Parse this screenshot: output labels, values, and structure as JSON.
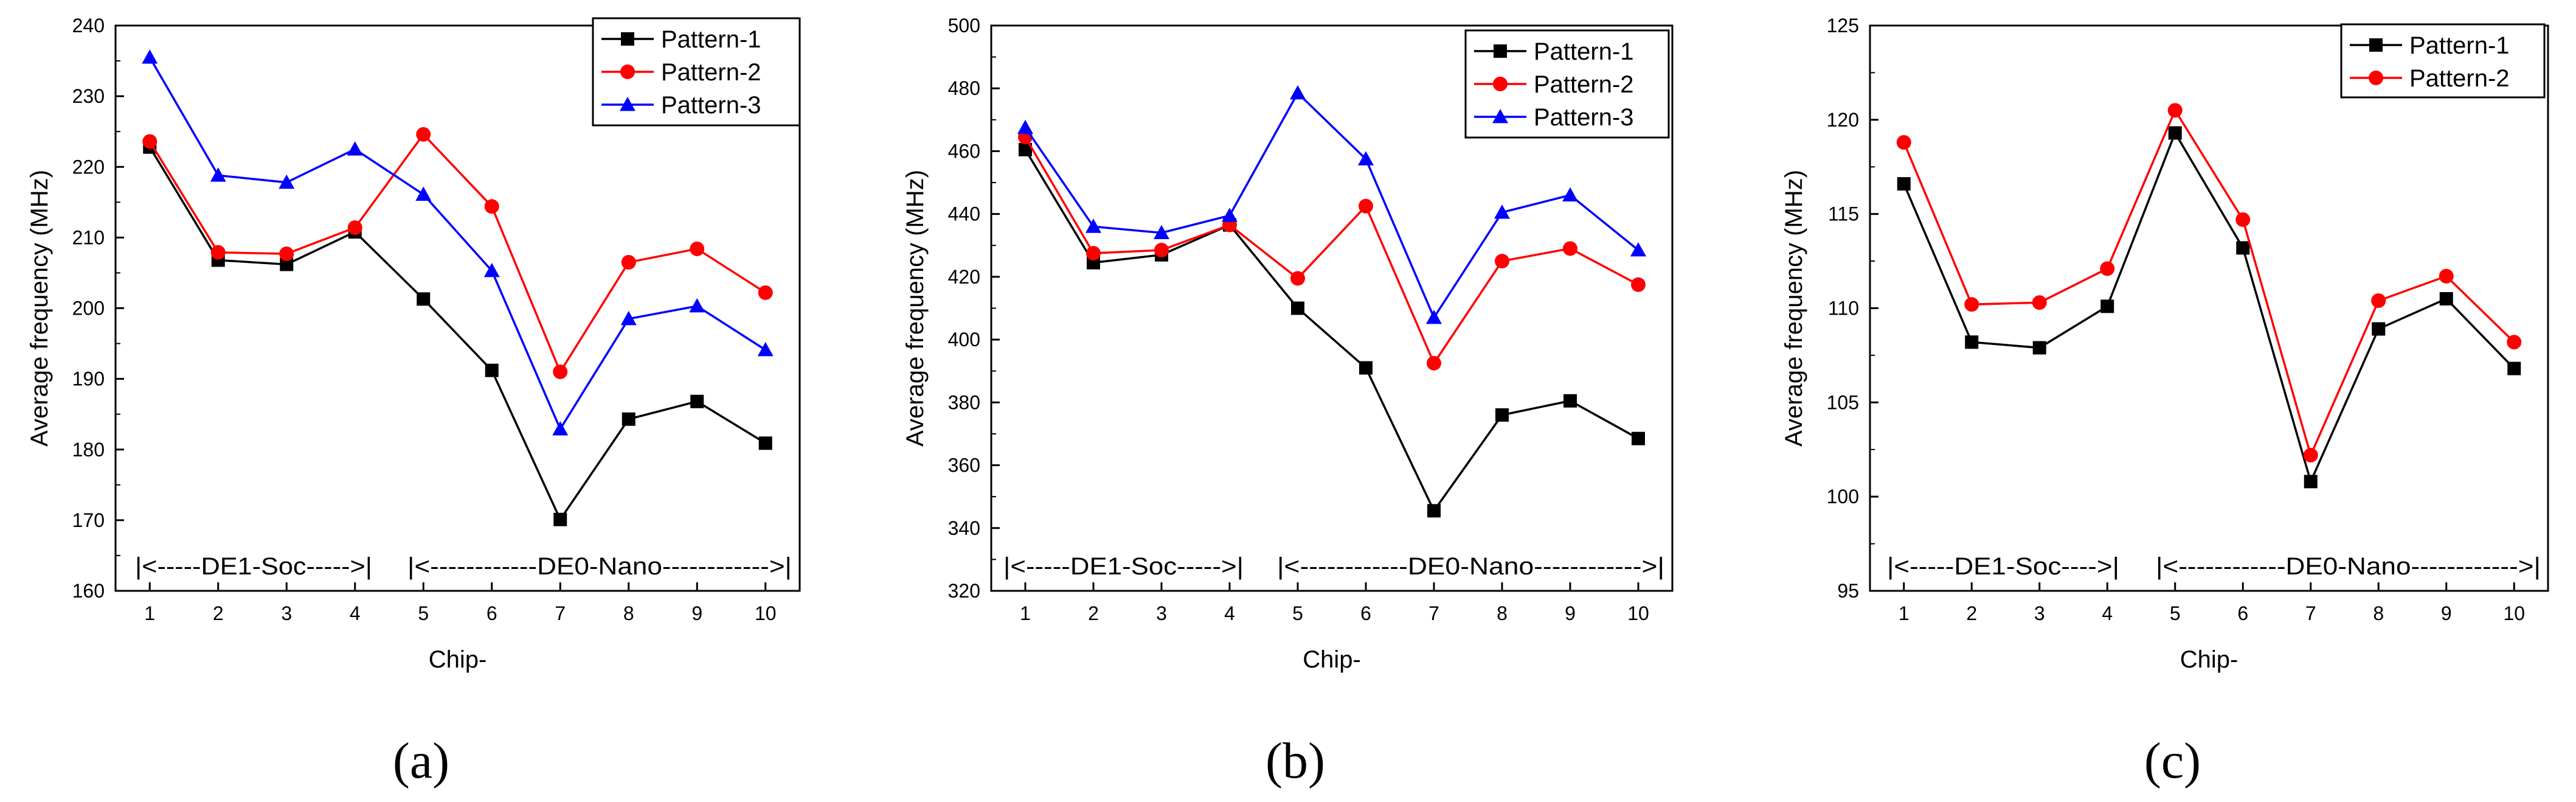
{
  "chart_data": [
    {
      "type": "line",
      "panel_label": "(a)",
      "xlabel": "Chip-",
      "ylabel": "Average frequency (MHz)",
      "categories": [
        "1",
        "2",
        "3",
        "4",
        "5",
        "6",
        "7",
        "8",
        "9",
        "10"
      ],
      "ylim": [
        160,
        240
      ],
      "yticks": [
        "160",
        "170",
        "180",
        "190",
        "200",
        "210",
        "220",
        "230",
        "240"
      ],
      "series": [
        {
          "name": "Pattern-1",
          "color": "#000000",
          "marker": "square",
          "values": [
            222.8,
            206.8,
            206.2,
            210.8,
            201.3,
            191.2,
            170.1,
            184.3,
            186.8,
            180.9
          ]
        },
        {
          "name": "Pattern-2",
          "color": "#ff0000",
          "marker": "circle",
          "values": [
            223.6,
            207.9,
            207.7,
            211.4,
            224.6,
            214.4,
            191.0,
            206.5,
            208.4,
            202.2
          ]
        },
        {
          "name": "Pattern-3",
          "color": "#0000ff",
          "marker": "triangle",
          "values": [
            235.5,
            218.8,
            217.8,
            222.5,
            216.1,
            205.3,
            182.9,
            198.5,
            200.3,
            194.1
          ]
        }
      ],
      "regions": [
        "|<-----DE1-Soc----->|",
        "|<------------DE0-Nano------------>|"
      ],
      "legend_position": "top-right"
    },
    {
      "type": "line",
      "panel_label": "(b)",
      "xlabel": "Chip-",
      "ylabel": "Average frequency (MHz)",
      "categories": [
        "1",
        "2",
        "3",
        "4",
        "5",
        "6",
        "7",
        "8",
        "9",
        "10"
      ],
      "ylim": [
        320,
        500
      ],
      "yticks": [
        "320",
        "340",
        "360",
        "380",
        "400",
        "420",
        "440",
        "460",
        "480",
        "500"
      ],
      "series": [
        {
          "name": "Pattern-1",
          "color": "#000000",
          "marker": "square",
          "values": [
            460.5,
            424.5,
            427.0,
            436.5,
            410.0,
            391.0,
            345.5,
            376.0,
            380.5,
            368.5
          ]
        },
        {
          "name": "Pattern-2",
          "color": "#ff0000",
          "marker": "circle",
          "values": [
            464.5,
            427.5,
            428.5,
            436.5,
            419.5,
            442.5,
            392.5,
            425.0,
            429.0,
            417.5
          ]
        },
        {
          "name": "Pattern-3",
          "color": "#0000ff",
          "marker": "triangle",
          "values": [
            467.5,
            436.0,
            434.0,
            439.5,
            478.5,
            457.5,
            407.0,
            440.5,
            446.0,
            428.5
          ]
        }
      ],
      "regions": [
        "|<-----DE1-Soc----->|",
        "|<------------DE0-Nano------------>|"
      ],
      "legend_position": "top-right"
    },
    {
      "type": "line",
      "panel_label": "(c)",
      "xlabel": "Chip-",
      "ylabel": "Average frequency (MHz)",
      "categories": [
        "1",
        "2",
        "3",
        "4",
        "5",
        "6",
        "7",
        "8",
        "9",
        "10"
      ],
      "ylim": [
        95,
        125
      ],
      "yticks": [
        "95",
        "100",
        "105",
        "110",
        "115",
        "120",
        "125"
      ],
      "series": [
        {
          "name": "Pattern-1",
          "color": "#000000",
          "marker": "square",
          "values": [
            116.6,
            108.2,
            107.9,
            110.1,
            119.3,
            113.2,
            100.8,
            108.9,
            110.5,
            106.8
          ]
        },
        {
          "name": "Pattern-2",
          "color": "#ff0000",
          "marker": "circle",
          "values": [
            118.8,
            110.2,
            110.3,
            112.1,
            120.5,
            114.7,
            102.2,
            110.4,
            111.7,
            108.2
          ]
        }
      ],
      "regions": [
        "|<-----DE1-Soc---->|",
        "|<------------DE0-Nano------------>|"
      ],
      "legend_position": "top-right"
    }
  ]
}
